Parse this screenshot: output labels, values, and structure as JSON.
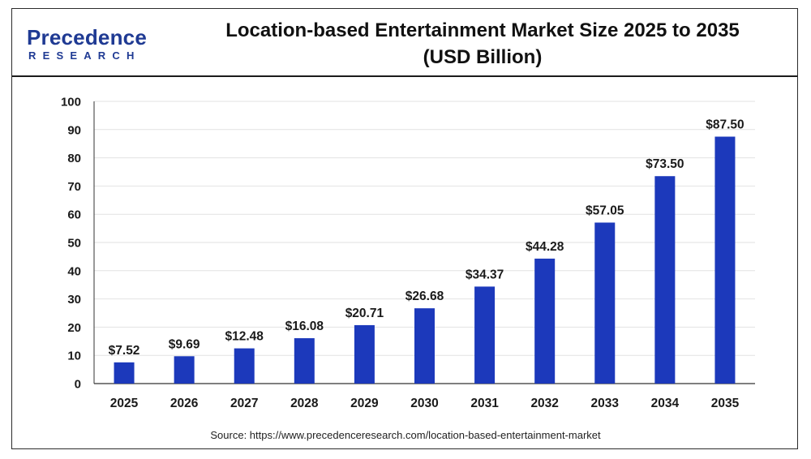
{
  "logo": {
    "main": "Precedence",
    "sub": "RESEARCH"
  },
  "title": {
    "line1": "Location-based Entertainment Market Size 2025 to 2035",
    "line2": "(USD Billion)"
  },
  "source": {
    "prefix": "Source: ",
    "url": "https://www.precedenceresearch.com/location-based-entertainment-market"
  },
  "colors": {
    "bar": "#1c39bb",
    "grid": "#e2e2e2",
    "axis": "#333333",
    "brand": "#1f3a93"
  },
  "chart_data": {
    "type": "bar",
    "title": "Location-based Entertainment Market Size 2025 to 2035",
    "subtitle": "(USD Billion)",
    "categories": [
      "2025",
      "2026",
      "2027",
      "2028",
      "2029",
      "2030",
      "2031",
      "2032",
      "2033",
      "2034",
      "2035"
    ],
    "values": [
      7.52,
      9.69,
      12.48,
      16.08,
      20.71,
      26.68,
      34.37,
      44.28,
      57.05,
      73.5,
      87.5
    ],
    "value_labels": [
      "$7.52",
      "$9.69",
      "$12.48",
      "$16.08",
      "$20.71",
      "$26.68",
      "$34.37",
      "$44.28",
      "$57.05",
      "$73.50",
      "$87.50"
    ],
    "y_ticks": [
      0,
      10,
      20,
      30,
      40,
      50,
      60,
      70,
      80,
      90,
      100
    ],
    "xlabel": "",
    "ylabel": "",
    "ylim": [
      0,
      100
    ],
    "grid": true,
    "legend": "none"
  }
}
